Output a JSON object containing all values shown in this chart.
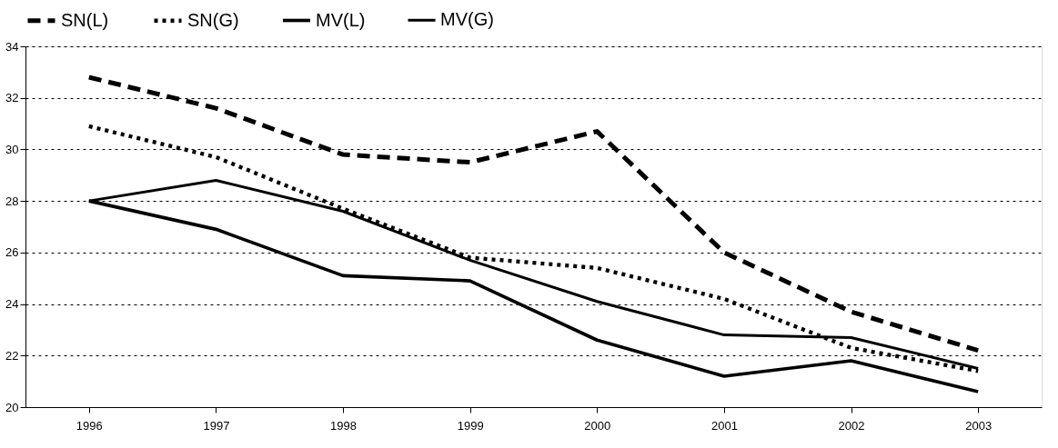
{
  "chart_data": {
    "type": "line",
    "categories": [
      "1996",
      "1997",
      "1998",
      "1999",
      "2000",
      "2001",
      "2002",
      "2003"
    ],
    "series": [
      {
        "name": "SN(L)",
        "color": "#000000",
        "line_style": "dashed",
        "values": [
          32.8,
          31.6,
          29.8,
          29.5,
          30.7,
          26.0,
          23.7,
          22.2
        ]
      },
      {
        "name": "SN(G)",
        "color": "#000000",
        "line_style": "dotted",
        "values": [
          30.9,
          29.7,
          27.7,
          25.8,
          25.4,
          24.2,
          22.3,
          21.4
        ]
      },
      {
        "name": "MV(L)",
        "color": "#000000",
        "line_style": "solid",
        "values": [
          28.0,
          26.9,
          25.1,
          24.9,
          22.6,
          21.2,
          21.8,
          20.6
        ]
      },
      {
        "name": "MV(G)",
        "color": "#000000",
        "line_style": "solid",
        "values": [
          28.0,
          28.8,
          27.6,
          25.7,
          24.1,
          22.8,
          22.7,
          21.5
        ]
      }
    ],
    "ylim": [
      20,
      34
    ],
    "yticks": [
      20,
      22,
      24,
      26,
      28,
      30,
      32,
      34
    ],
    "grid": "y",
    "legend": "top",
    "marker": "none"
  }
}
